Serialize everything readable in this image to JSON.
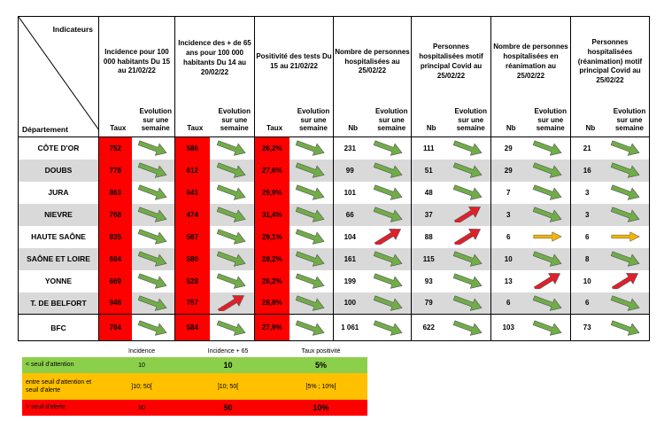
{
  "corner": {
    "indicateurs": "Indicateurs",
    "departement": "Département"
  },
  "groups": [
    {
      "title": "Incidence pour 100 000 habitants Du 15 au 21/02/22",
      "sub1": "Taux",
      "sub2": "Evolution sur une semaine"
    },
    {
      "title": "Incidence des + de 65 ans pour 100 000 habitants Du 14 au 20/02/22",
      "sub1": "Taux",
      "sub2": "Evolution sur une semaine"
    },
    {
      "title": "Positivité des tests Du 15 au 21/02/22",
      "sub1": "Taux",
      "sub2": "Evolution sur une semaine"
    },
    {
      "title": "Nombre de personnes hospitalisées au 25/02/22",
      "sub1": "Nb",
      "sub2": "Evolution sur une semaine"
    },
    {
      "title": "Personnes hospitalisées motif principal Covid au 25/02/22",
      "sub1": "Nb",
      "sub2": "Evolution sur une semaine"
    },
    {
      "title": "Nombre de personnes hospitalisées en réanimation au 25/02/22",
      "sub1": "Nb",
      "sub2": "Evolution sur une semaine"
    },
    {
      "title": "Personnes hospitalisées (réanimation) motif principal Covid au 25/02/22",
      "sub1": "Nb",
      "sub2": "Evolution sur une semaine"
    }
  ],
  "arrow_colors": {
    "down": "#70ad47",
    "up": "#e0202a",
    "flat": "#f4b400"
  },
  "rows": [
    {
      "dept": "CÔTE D'OR",
      "v": [
        "752",
        "586",
        "26,2%",
        "231",
        "111",
        "29",
        "21"
      ],
      "a": [
        "down",
        "down",
        "down",
        "down",
        "down",
        "down",
        "down"
      ]
    },
    {
      "dept": "DOUBS",
      "v": [
        "778",
        "612",
        "27,6%",
        "99",
        "51",
        "29",
        "16"
      ],
      "a": [
        "down",
        "down",
        "down",
        "down",
        "down",
        "down",
        "down"
      ]
    },
    {
      "dept": "JURA",
      "v": [
        "863",
        "641",
        "29,9%",
        "101",
        "48",
        "7",
        "3"
      ],
      "a": [
        "down",
        "down",
        "down",
        "down",
        "down",
        "down",
        "down"
      ]
    },
    {
      "dept": "NIEVRE",
      "v": [
        "768",
        "474",
        "31,4%",
        "66",
        "37",
        "3",
        "3"
      ],
      "a": [
        "down",
        "down",
        "down",
        "down",
        "up",
        "down",
        "down"
      ]
    },
    {
      "dept": "HAUTE SAÔNE",
      "v": [
        "835",
        "587",
        "29,1%",
        "104",
        "88",
        "6",
        "6"
      ],
      "a": [
        "down",
        "down",
        "down",
        "up",
        "up",
        "flat",
        "flat"
      ]
    },
    {
      "dept": "SAÔNE ET LOIRE",
      "v": [
        "694",
        "580",
        "28,2%",
        "161",
        "115",
        "10",
        "8"
      ],
      "a": [
        "down",
        "down",
        "down",
        "down",
        "down",
        "down",
        "down"
      ]
    },
    {
      "dept": "YONNE",
      "v": [
        "669",
        "528",
        "26,2%",
        "199",
        "93",
        "13",
        "10"
      ],
      "a": [
        "down",
        "down",
        "down",
        "down",
        "down",
        "up",
        "up"
      ]
    },
    {
      "dept": "T. DE BELFORT",
      "v": [
        "948",
        "757",
        "28,8%",
        "100",
        "79",
        "6",
        "6"
      ],
      "a": [
        "down",
        "up",
        "down",
        "down",
        "down",
        "down",
        "down"
      ]
    },
    {
      "dept": "BFC",
      "v": [
        "764",
        "584",
        "27,9%",
        "1 061",
        "622",
        "103",
        "73"
      ],
      "a": [
        "down",
        "down",
        "down",
        "down",
        "down",
        "down",
        "down"
      ]
    }
  ],
  "legend": {
    "headers": [
      "Incidence",
      "Incidence + 65",
      "Taux positivité"
    ],
    "rows": [
      {
        "label": "< seuil d'attention",
        "v": [
          "10",
          "10",
          "5%"
        ]
      },
      {
        "label": "entre seuil d'attention et seuil d'alerte",
        "v": [
          "]10; 50[",
          "]10; 50[",
          "]5% ; 10%["
        ]
      },
      {
        "label": "> seuil d'alerte",
        "v": [
          "50",
          "50",
          "10%"
        ]
      }
    ]
  }
}
